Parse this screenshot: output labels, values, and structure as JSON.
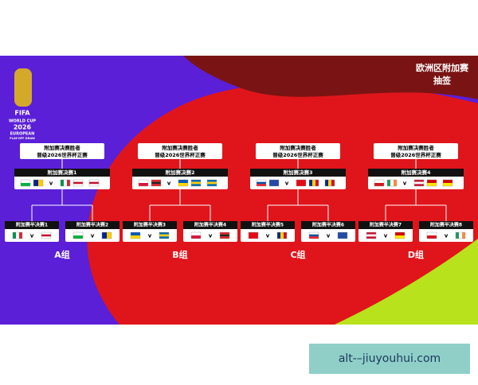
{
  "header": {
    "title": "欧洲区附加赛",
    "subtitle": "抽签"
  },
  "logo": {
    "brand": "FIFA",
    "event": "WORLD CUP",
    "year": "2026",
    "region": "EUROPEAN",
    "stage": "PLAY-OFF DRAW"
  },
  "versus": "v",
  "groups": [
    {
      "winner": [
        "附加赛决赛胜者",
        "晋级2026世界杯正赛"
      ],
      "final": "附加赛决赛1",
      "semis": [
        "附加赛半决赛1",
        "附加赛半决赛2"
      ],
      "label": "A组"
    },
    {
      "winner": [
        "附加赛决赛胜者",
        "晋级2026世界杯正赛"
      ],
      "final": "附加赛决赛2",
      "semis": [
        "附加赛半决赛3",
        "附加赛半决赛4"
      ],
      "label": "B组"
    },
    {
      "winner": [
        "附加赛决赛胜者",
        "晋级2026世界杯正赛"
      ],
      "final": "附加赛决赛3",
      "semis": [
        "附加赛半决赛5",
        "附加赛半决赛6"
      ],
      "label": "C组"
    },
    {
      "winner": [
        "附加赛决赛胜者",
        "晋级2026世界杯正赛"
      ],
      "final": "附加赛决赛4",
      "semis": [
        "附加赛半决赛7",
        "附加赛半决赛8"
      ],
      "label": "D组"
    }
  ],
  "watermark": "alt-–jiuyouhui.com"
}
